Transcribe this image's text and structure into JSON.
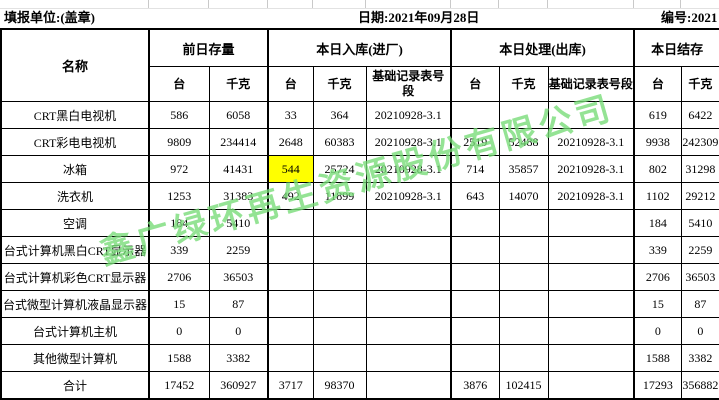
{
  "meta": {
    "unit_label": "填报单位:(盖章)",
    "date_label": "日期:2021年09月28日",
    "serial_label": "编号:2021"
  },
  "table": {
    "name_header": "名称",
    "groups": [
      {
        "label": "前日存量"
      },
      {
        "label": "本日入库(进厂)"
      },
      {
        "label": "本日处理(出库)"
      },
      {
        "label": "本日结存"
      }
    ],
    "sub_headers": [
      "台",
      "千克",
      "台",
      "千克",
      "基础记录表号段",
      "台",
      "千克",
      "基础记录表号段",
      "台",
      "千克"
    ],
    "highlight_color": "#ffff00",
    "rows": [
      {
        "name": "CRT黑白电视机",
        "prev_units": "586",
        "prev_kg": "6058",
        "in_units": "33",
        "in_kg": "364",
        "in_record": "20210928-3.1",
        "out_units": "",
        "out_kg": "",
        "out_record": "",
        "bal_units": "619",
        "bal_kg": "6422"
      },
      {
        "name": "CRT彩电电视机",
        "prev_units": "9809",
        "prev_kg": "234414",
        "in_units": "2648",
        "in_kg": "60383",
        "in_record": "20210928-3.1",
        "out_units": "2519",
        "out_kg": "52488",
        "out_record": "20210928-3.1",
        "bal_units": "9938",
        "bal_kg": "242309"
      },
      {
        "name": "冰箱",
        "prev_units": "972",
        "prev_kg": "41431",
        "in_units": "544",
        "in_kg": "25724",
        "in_record": "20210928-3.1",
        "out_units": "714",
        "out_kg": "35857",
        "out_record": "20210928-3.1",
        "bal_units": "802",
        "bal_kg": "31298",
        "highlight_col": "in_units"
      },
      {
        "name": "洗衣机",
        "prev_units": "1253",
        "prev_kg": "31383",
        "in_units": "492",
        "in_kg": "11899",
        "in_record": "20210928-3.1",
        "out_units": "643",
        "out_kg": "14070",
        "out_record": "20210928-3.1",
        "bal_units": "1102",
        "bal_kg": "29212"
      },
      {
        "name": "空调",
        "prev_units": "184",
        "prev_kg": "5410",
        "in_units": "",
        "in_kg": "",
        "in_record": "",
        "out_units": "",
        "out_kg": "",
        "out_record": "",
        "bal_units": "184",
        "bal_kg": "5410"
      },
      {
        "name": "台式计算机黑白CRT显示器",
        "prev_units": "339",
        "prev_kg": "2259",
        "in_units": "",
        "in_kg": "",
        "in_record": "",
        "out_units": "",
        "out_kg": "",
        "out_record": "",
        "bal_units": "339",
        "bal_kg": "2259"
      },
      {
        "name": "台式计算机彩色CRT显示器",
        "prev_units": "2706",
        "prev_kg": "36503",
        "in_units": "",
        "in_kg": "",
        "in_record": "",
        "out_units": "",
        "out_kg": "",
        "out_record": "",
        "bal_units": "2706",
        "bal_kg": "36503"
      },
      {
        "name": "台式微型计算机液晶显示器",
        "prev_units": "15",
        "prev_kg": "87",
        "in_units": "",
        "in_kg": "",
        "in_record": "",
        "out_units": "",
        "out_kg": "",
        "out_record": "",
        "bal_units": "15",
        "bal_kg": "87"
      },
      {
        "name": "台式计算机主机",
        "prev_units": "0",
        "prev_kg": "0",
        "in_units": "",
        "in_kg": "",
        "in_record": "",
        "out_units": "",
        "out_kg": "",
        "out_record": "",
        "bal_units": "0",
        "bal_kg": "0"
      },
      {
        "name": "其他微型计算机",
        "prev_units": "1588",
        "prev_kg": "3382",
        "in_units": "",
        "in_kg": "",
        "in_record": "",
        "out_units": "",
        "out_kg": "",
        "out_record": "",
        "bal_units": "1588",
        "bal_kg": "3382"
      },
      {
        "name": "合计",
        "is_total": true,
        "prev_units": "17452",
        "prev_kg": "360927",
        "in_units": "3717",
        "in_kg": "98370",
        "in_record": "",
        "out_units": "3876",
        "out_kg": "102415",
        "out_record": "",
        "bal_units": "17293",
        "bal_kg": "356882"
      }
    ]
  },
  "watermark": {
    "text": "鑫广绿环再生资源股份有限公司",
    "color": "rgba(118,219,118,0.78)"
  }
}
